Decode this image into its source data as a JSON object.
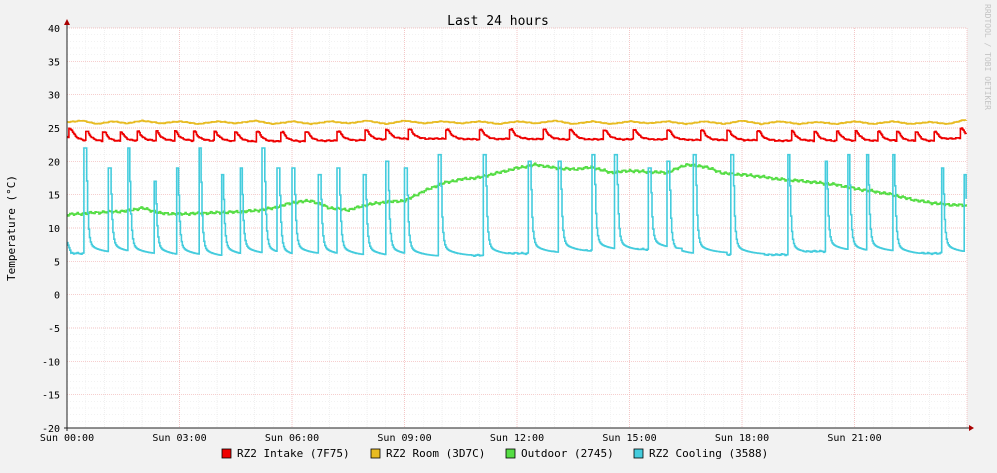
{
  "watermark": "RRDTOOL / TOBI OETIKER",
  "chart_data": {
    "type": "line",
    "title": "Last 24 hours",
    "ylabel": "Temperature (°C)",
    "xlabel": "",
    "ylim": [
      -20,
      40
    ],
    "xlim": [
      0,
      24
    ],
    "grid": true,
    "legend_position": "bottom",
    "y_ticks": [
      "40",
      "35",
      "30",
      "25",
      "20",
      "15",
      "10",
      "5",
      "0",
      "-5",
      "-10",
      "-15",
      "-20"
    ],
    "x_tick_labels": [
      {
        "x": 0,
        "label": "Sun 00:00"
      },
      {
        "x": 3,
        "label": "Sun 03:00"
      },
      {
        "x": 6,
        "label": "Sun 06:00"
      },
      {
        "x": 9,
        "label": "Sun 09:00"
      },
      {
        "x": 12,
        "label": "Sun 12:00"
      },
      {
        "x": 15,
        "label": "Sun 15:00"
      },
      {
        "x": 18,
        "label": "Sun 18:00"
      },
      {
        "x": 21,
        "label": "Sun 21:00"
      }
    ],
    "series": [
      {
        "name": "RZ2 Intake (7F75)",
        "color": "#ee0000",
        "spike_times": [
          0.05,
          0.5,
          0.95,
          1.4,
          1.85,
          2.35,
          2.85,
          3.35,
          3.9,
          4.45,
          5.05,
          5.7,
          6.35,
          7.2,
          7.95,
          8.5,
          9.1,
          10.1,
          11.0,
          11.8,
          12.7,
          13.4,
          14.3,
          15.1,
          16.0,
          16.9,
          17.6,
          18.4,
          19.3,
          19.9,
          20.5,
          21.0,
          21.6,
          22.1,
          22.6,
          23.1,
          23.8
        ],
        "x": [
          0,
          0.3,
          0.6,
          1,
          1.5,
          2,
          3,
          4,
          5,
          6,
          7,
          8,
          9,
          10,
          11,
          12,
          13,
          14,
          15,
          16,
          17,
          18,
          19,
          20,
          21,
          22,
          23,
          23.9
        ],
        "y": [
          23.6,
          23.2,
          23.0,
          23.0,
          23.0,
          23.1,
          23.1,
          23.1,
          23.0,
          23.0,
          23.1,
          23.2,
          23.4,
          23.4,
          23.3,
          23.4,
          23.3,
          23.3,
          23.3,
          23.3,
          23.2,
          23.2,
          23.1,
          23.1,
          23.1,
          23.1,
          23.0,
          23.6
        ]
      },
      {
        "name": "RZ2 Room (3D7C)",
        "color": "#e8bb22",
        "x": [
          0,
          0.4,
          0.8,
          1.2,
          1.6,
          2,
          2.5,
          3,
          3.5,
          4,
          4.5,
          5,
          5.5,
          6,
          6.5,
          7,
          7.5,
          8,
          8.5,
          9,
          9.5,
          10,
          10.5,
          11,
          11.5,
          12,
          12.5,
          13,
          13.5,
          14,
          14.5,
          15,
          15.5,
          16,
          16.5,
          17,
          17.5,
          18,
          18.5,
          19,
          19.5,
          20,
          20.5,
          21,
          21.5,
          22,
          22.5,
          23,
          23.5,
          23.9
        ],
        "y": [
          25.9,
          26.1,
          25.6,
          26.0,
          25.7,
          26.1,
          25.7,
          26.0,
          25.6,
          26.0,
          25.7,
          26.1,
          25.6,
          26.0,
          25.6,
          26.0,
          25.7,
          26.1,
          25.6,
          26.1,
          25.7,
          26.0,
          25.7,
          26.0,
          25.6,
          26.0,
          25.7,
          26.1,
          25.6,
          26.0,
          25.6,
          26.0,
          25.7,
          26.0,
          25.6,
          26.0,
          25.6,
          26.1,
          25.6,
          26.0,
          25.6,
          25.9,
          25.6,
          26.0,
          25.6,
          26.0,
          25.6,
          25.9,
          25.6,
          26.2
        ]
      },
      {
        "name": "Outdoor (2745)",
        "color": "#55dd44",
        "x": [
          0,
          0.5,
          1,
          1.5,
          2,
          2.5,
          3,
          3.5,
          4,
          4.5,
          5,
          5.5,
          6,
          6.5,
          7,
          7.5,
          8,
          8.5,
          9,
          9.5,
          10,
          10.5,
          11,
          11.5,
          12,
          12.5,
          13,
          13.5,
          14,
          14.5,
          15,
          15.5,
          16,
          16.5,
          17,
          17.5,
          18,
          18.5,
          19,
          19.5,
          20,
          20.5,
          21,
          21.5,
          22,
          22.5,
          23,
          23.5,
          23.9
        ],
        "y": [
          12.0,
          12.2,
          12.4,
          12.5,
          13.0,
          12.2,
          12.1,
          12.2,
          12.3,
          12.4,
          12.6,
          13.0,
          13.8,
          14.1,
          13.0,
          12.7,
          13.5,
          13.9,
          14.1,
          15.5,
          16.7,
          17.3,
          17.6,
          18.3,
          19.0,
          19.5,
          19.0,
          18.8,
          19.1,
          18.3,
          18.6,
          18.4,
          18.3,
          19.5,
          19.2,
          18.2,
          18.0,
          17.7,
          17.3,
          17.1,
          16.8,
          16.5,
          15.9,
          15.5,
          15.0,
          14.3,
          13.8,
          13.5,
          13.4
        ]
      },
      {
        "name": "RZ2 Cooling (3588)",
        "color": "#44ccdd",
        "spike_times": [
          0.45,
          1.1,
          1.6,
          2.3,
          2.9,
          3.5,
          4.1,
          4.6,
          5.2,
          5.6,
          6.0,
          6.7,
          7.2,
          7.9,
          8.5,
          9.0,
          9.9,
          11.1,
          12.3,
          13.1,
          14.0,
          14.6,
          15.5,
          16.0,
          16.7,
          17.7,
          19.2,
          20.2,
          20.8,
          21.3,
          22.0,
          23.3,
          23.9
        ],
        "spike_peaks": [
          22.0,
          19.0,
          22.0,
          17.0,
          19.0,
          22.0,
          18.0,
          19.0,
          22.0,
          19.0,
          19.0,
          18.0,
          19.0,
          18.0,
          20.0,
          19.0,
          21.0,
          21.0,
          20.0,
          20.0,
          21.0,
          21.0,
          19.0,
          20.0,
          21.0,
          21.0,
          21.0,
          20.0,
          21.0,
          21.0,
          21.0,
          19.0,
          18.0
        ],
        "baseline": [
          6.2,
          6.0,
          5.8,
          5.8,
          5.6,
          5.8,
          6.0,
          5.9,
          5.6,
          6.0,
          5.8,
          5.8,
          5.7,
          5.8,
          5.7,
          5.8,
          5.9,
          6.2,
          6.4,
          6.6,
          6.5,
          6.8,
          6.0,
          6.2,
          6.0,
          6.0,
          6.5,
          6.3,
          6.4,
          6.0,
          6.2,
          6.0,
          5.8
        ]
      }
    ]
  }
}
